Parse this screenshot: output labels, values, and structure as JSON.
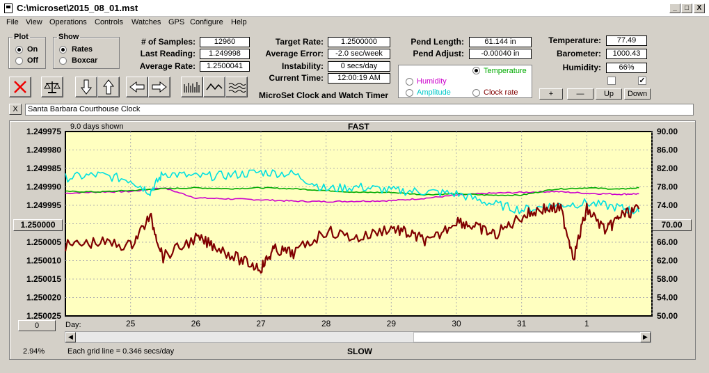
{
  "window": {
    "title": "C:\\microset\\2015_08_01.mst",
    "min": "_",
    "max": "□",
    "close": "X"
  },
  "menu": [
    "File",
    "View",
    "Operations",
    "Controls",
    "Watches",
    "GPS",
    "Configure",
    "Help"
  ],
  "plot": {
    "title": "Plot",
    "on": "On",
    "off": "Off"
  },
  "show": {
    "title": "Show",
    "rates": "Rates",
    "boxcar": "Boxcar"
  },
  "stats": {
    "samples_label": "# of Samples:",
    "samples": "12960",
    "last_label": "Last Reading:",
    "last": "1.249998",
    "avg_label": "Average Rate:",
    "avg": "1.2500041",
    "target_label": "Target Rate:",
    "target": "1.2500000",
    "err_label": "Average Error:",
    "err": "-2.0 sec/week",
    "inst_label": "Instability:",
    "inst": "0 secs/day",
    "time_label": "Current Time:",
    "time": "12:00:19 AM",
    "app_name": "MicroSet Clock and Watch Timer",
    "pend_len_label": "Pend Length:",
    "pend_len": "61.144 in",
    "pend_adj_label": "Pend Adjust:",
    "pend_adj": "-0.00040 in",
    "temp_label": "Temperature:",
    "temp": "77.49",
    "baro_label": "Barometer:",
    "baro": "1000.43",
    "hum_label": "Humidity:",
    "hum": "66%"
  },
  "aux": {
    "temperature": "Temperature",
    "humidity": "Humidity",
    "amplitude": "Amplitude",
    "clock_rate": "Clock rate"
  },
  "aux_buttons": {
    "plus": "+",
    "minus": "—",
    "up": "Up",
    "down": "Down",
    "check_on": "✓"
  },
  "notes": "Santa Barbara Courthouse Clock",
  "notes_clear": "X",
  "chart": {
    "days_shown": "9.0 days shown",
    "top_label": "FAST",
    "bottom_label": "SLOW",
    "grid_text": "Each grid line = 0.346 secs/day",
    "percent": "2.94%",
    "day_label": "Day:",
    "left_btn": "1.250000",
    "right_btn": "70.00",
    "bottom_btn": "0"
  },
  "colors": {
    "rate": "#800000",
    "temperature": "#00aa00",
    "humidity": "#cc00cc",
    "amplitude": "#00e0e0",
    "plot_bg": "#ffffc0"
  },
  "chart_data": {
    "type": "line",
    "xlabel": "Day:",
    "x_ticks": [
      "25",
      "26",
      "27",
      "28",
      "29",
      "30",
      "31",
      "1"
    ],
    "y_left_ticks": [
      "1.249975",
      "1.249980",
      "1.249985",
      "1.249990",
      "1.249995",
      "1.250000",
      "1.250005",
      "1.250010",
      "1.250015",
      "1.250020",
      "1.250025"
    ],
    "y_right_ticks": [
      "90.00",
      "86.00",
      "82.00",
      "78.00",
      "74.00",
      "70.00",
      "66.00",
      "62.00",
      "58.00",
      "54.00",
      "50.00"
    ],
    "y_left_range": [
      1.249975,
      1.250025
    ],
    "y_right_range": [
      50,
      90
    ],
    "x_range": [
      24.0,
      33.0
    ],
    "series": [
      {
        "key": "rate",
        "axis": "left",
        "x": [
          24.0,
          24.5,
          25.0,
          25.3,
          25.5,
          26.0,
          26.3,
          26.7,
          27.0,
          27.2,
          27.5,
          28.0,
          28.5,
          29.0,
          29.3,
          29.6,
          30.0,
          30.3,
          30.6,
          31.0,
          31.3,
          31.6,
          31.8,
          32.0,
          32.3,
          32.5,
          32.8
        ],
        "values": [
          1.250006,
          1.250005,
          1.250006,
          1.249998,
          1.250009,
          1.250004,
          1.250006,
          1.25001,
          1.250012,
          1.250007,
          1.250008,
          1.250002,
          1.250004,
          1.250001,
          1.250003,
          1.250005,
          1.249999,
          1.250001,
          1.250003,
          1.249998,
          1.249996,
          1.249996,
          1.250009,
          1.249996,
          1.250002,
          1.249998,
          1.249996
        ]
      },
      {
        "key": "temperature",
        "axis": "right",
        "x": [
          24.0,
          24.5,
          25.0,
          25.5,
          26.0,
          26.5,
          27.0,
          27.5,
          28.0,
          28.5,
          29.0,
          29.5,
          30.0,
          30.5,
          31.0,
          31.5,
          32.0,
          32.5,
          32.8
        ],
        "values": [
          77.0,
          76.9,
          77.2,
          77.6,
          77.8,
          77.6,
          77.8,
          77.6,
          77.2,
          76.8,
          76.8,
          76.3,
          76.5,
          76.2,
          76.2,
          77.5,
          77.8,
          77.5,
          77.8
        ]
      },
      {
        "key": "humidity",
        "axis": "right",
        "x": [
          24.0,
          24.5,
          25.0,
          25.5,
          26.0,
          26.5,
          27.0,
          27.5,
          28.0,
          28.5,
          29.0,
          29.5,
          30.0,
          30.5,
          31.0,
          31.5,
          32.0,
          32.5,
          32.8
        ],
        "values": [
          76.6,
          76.9,
          77.0,
          77.8,
          75.6,
          75.4,
          75.2,
          74.9,
          74.8,
          74.9,
          75.0,
          75.5,
          76.2,
          76.6,
          76.8,
          77.0,
          76.6,
          76.4,
          76.5
        ]
      },
      {
        "key": "amplitude",
        "axis": "right",
        "x": [
          24.0,
          24.5,
          25.0,
          25.3,
          25.5,
          26.0,
          26.5,
          27.0,
          27.5,
          28.0,
          28.5,
          29.0,
          29.5,
          30.0,
          30.5,
          31.0,
          31.5,
          32.0,
          32.5,
          32.8
        ],
        "values": [
          80.0,
          80.6,
          79.5,
          76.9,
          81.0,
          80.2,
          80.5,
          81.2,
          80.8,
          77.5,
          78.0,
          77.2,
          77.0,
          76.5,
          74.5,
          73.0,
          74.0,
          74.5,
          73.5,
          72.5
        ]
      }
    ]
  }
}
